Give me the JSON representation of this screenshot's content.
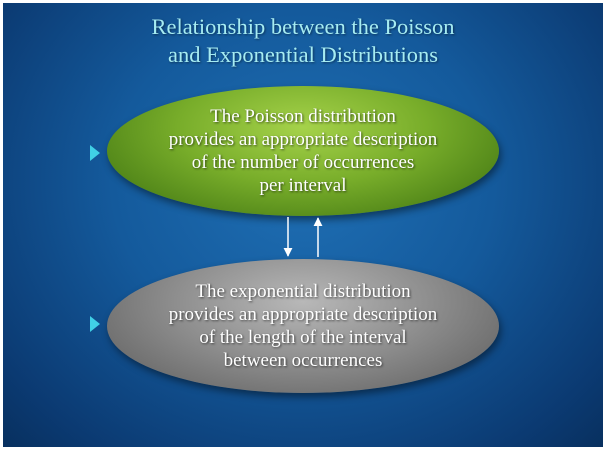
{
  "title": {
    "line1": "Relationship between the Poisson",
    "line2": "and Exponential Distributions"
  },
  "poisson_box": {
    "lines": [
      "The Poisson distribution",
      "provides an appropriate description",
      "of the number of occurrences",
      "per interval"
    ],
    "color": "#6fa52a"
  },
  "exponential_box": {
    "lines": [
      "The exponential distribution",
      "provides an appropriate description",
      "of the length of the interval",
      "between occurrences"
    ],
    "color": "#8a8a8a"
  },
  "bullet_icon": "triangle-right-icon",
  "bullet_color": "#40d0e6",
  "connector": "bidirectional-arrows-icon"
}
